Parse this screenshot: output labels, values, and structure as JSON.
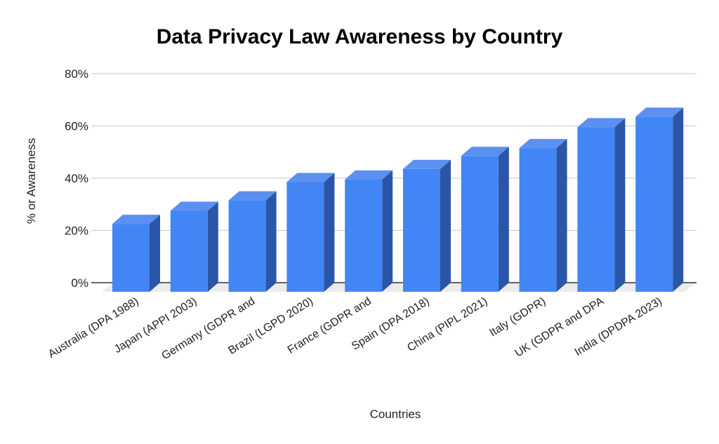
{
  "chart_data": {
    "type": "bar",
    "title": "Data Privacy Law Awareness by Country",
    "xlabel": "Countries",
    "ylabel": "% or Awareness",
    "ylim": [
      0,
      80
    ],
    "yticks": [
      "0%",
      "20%",
      "40%",
      "60%",
      "80%"
    ],
    "grid": true,
    "style": "3d",
    "bar_color": "#4285f4",
    "categories": [
      "Australia (DPA 1988)",
      "Japan (APPI 2003)",
      "Germany (GDPR and",
      "Brazil (LGPD 2020)",
      "France (GDPR and",
      "Spain (DPA 2018)",
      "China (PIPL 2021)",
      "Italy (GDPR)",
      "UK (GDPR and DPA",
      "India (DPDPA 2023)"
    ],
    "values": [
      26,
      31,
      35,
      42,
      43,
      47,
      52,
      55,
      63,
      67
    ]
  }
}
